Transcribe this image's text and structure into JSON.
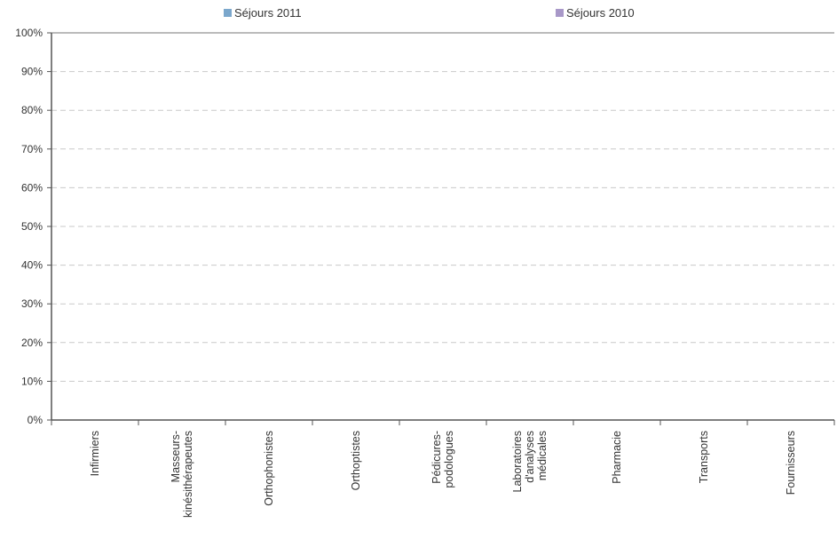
{
  "chart_data": {
    "type": "bar",
    "categories": [
      "Infirmiers",
      "Masseurs-\nkinésithérapeutes",
      "Orthophonistes",
      "Orthoptistes",
      "Pédicures-\npodologues",
      "Laboratoires\nd'analyses\nmédicales",
      "Pharmacie",
      "Transports",
      "Fournisseurs"
    ],
    "series": [
      {
        "name": "Séjours 2011",
        "color": "#7ba7cc",
        "values": [
          null,
          null,
          null,
          null,
          null,
          null,
          null,
          null,
          null
        ]
      },
      {
        "name": "Séjours 2010",
        "color": "#a898c8",
        "values": [
          null,
          null,
          null,
          null,
          null,
          null,
          null,
          null,
          null
        ]
      }
    ],
    "y_ticks": [
      "0%",
      "10%",
      "20%",
      "30%",
      "40%",
      "50%",
      "60%",
      "70%",
      "80%",
      "90%",
      "100%"
    ],
    "ylim": [
      0,
      100
    ],
    "y_unit": "%",
    "grid": true,
    "legend_position": "top"
  }
}
